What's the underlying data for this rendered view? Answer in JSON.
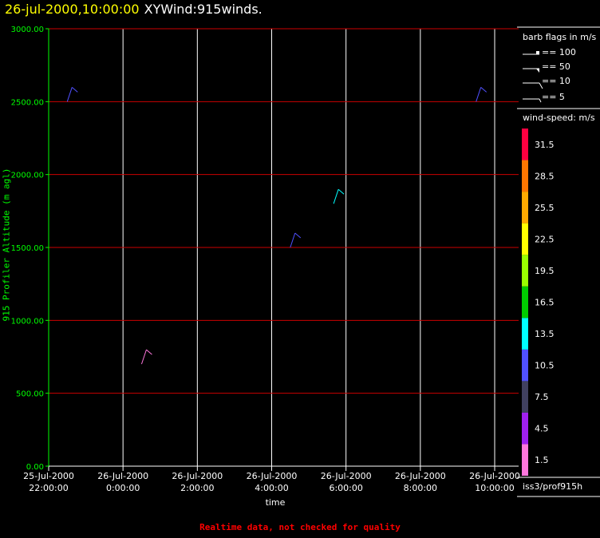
{
  "title": {
    "timestamp": "26-jul-2000,10:00:00",
    "product": "XYWind:915winds."
  },
  "footer_note": "Realtime data, not checked for quality",
  "station": "iss3/prof915h",
  "legend": {
    "barb_title": "barb flags in m/s",
    "barbs": [
      "== 100",
      "== 50",
      "== 10",
      "== 5"
    ],
    "colorbar_title": "wind-speed: m/s",
    "colorbar": [
      {
        "label": "1.5",
        "color": "#ff77dd"
      },
      {
        "label": "4.5",
        "color": "#a020f0"
      },
      {
        "label": "7.5",
        "color": "#404060"
      },
      {
        "label": "10.5",
        "color": "#5050ff"
      },
      {
        "label": "13.5",
        "color": "#00ffff"
      },
      {
        "label": "16.5",
        "color": "#00cc00"
      },
      {
        "label": "19.5",
        "color": "#99ff00"
      },
      {
        "label": "22.5",
        "color": "#ffff00"
      },
      {
        "label": "25.5",
        "color": "#ffaa00"
      },
      {
        "label": "28.5",
        "color": "#ff7700"
      },
      {
        "label": "31.5",
        "color": "#ff0040"
      }
    ]
  },
  "chart_data": {
    "type": "scatter",
    "xlabel": "time",
    "ylabel": "915 Profiler Altitude (m agl)",
    "ylim": [
      0,
      3000
    ],
    "yticks": [
      "0.00",
      "500.00",
      "1000.00",
      "1500.00",
      "2000.00",
      "2500.00",
      "3000.00"
    ],
    "xticks": [
      {
        "date": "25-Jul-2000",
        "time": "22:00:00"
      },
      {
        "date": "26-Jul-2000",
        "time": "0:00:00"
      },
      {
        "date": "26-Jul-2000",
        "time": "2:00:00"
      },
      {
        "date": "26-Jul-2000",
        "time": "4:00:00"
      },
      {
        "date": "26-Jul-2000",
        "time": "6:00:00"
      },
      {
        "date": "26-Jul-2000",
        "time": "8:00:00"
      },
      {
        "date": "26-Jul-2000",
        "time": "10:00:00"
      }
    ],
    "xlim": [
      "2000-07-25T22:00",
      "2000-07-26T10:00"
    ],
    "grid": true,
    "wind_barbs": [
      {
        "time": "2000-07-25T22:30",
        "altitude": 2500,
        "speed_ms": 10.5
      },
      {
        "time": "2000-07-26T00:30",
        "altitude": 700,
        "speed_ms": 1.5
      },
      {
        "time": "2000-07-26T04:30",
        "altitude": 1500,
        "speed_ms": 10.5
      },
      {
        "time": "2000-07-26T05:40",
        "altitude": 1800,
        "speed_ms": 13.5
      },
      {
        "time": "2000-07-26T09:30",
        "altitude": 2500,
        "speed_ms": 10.5
      }
    ]
  }
}
